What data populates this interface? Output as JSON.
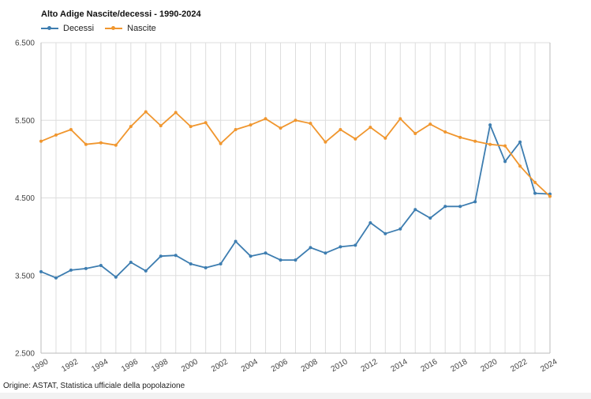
{
  "source": "Origine: ASTAT, Statistica ufficiale della popolazione",
  "colors": {
    "decessi": "#3d7db0",
    "nascite": "#f0962e",
    "grid": "#dddddd",
    "axis": "#bbbbbb"
  },
  "chart_data": {
    "type": "line",
    "title": "Alto Adige Nascite/decessi - 1990-2024",
    "xlabel": "",
    "ylabel": "",
    "x": [
      1990,
      1991,
      1992,
      1993,
      1994,
      1995,
      1996,
      1997,
      1998,
      1999,
      2000,
      2001,
      2002,
      2003,
      2004,
      2005,
      2006,
      2007,
      2008,
      2009,
      2010,
      2011,
      2012,
      2013,
      2014,
      2015,
      2016,
      2017,
      2018,
      2019,
      2020,
      2021,
      2022,
      2023,
      2024
    ],
    "xtick_labels": [
      "1990",
      "1992",
      "1994",
      "1996",
      "1998",
      "2000",
      "2002",
      "2004",
      "2006",
      "2008",
      "2010",
      "2012",
      "2014",
      "2016",
      "2018",
      "2020",
      "2022",
      "2024"
    ],
    "ylim": [
      2500,
      6500
    ],
    "ytick_labels": [
      "2.500",
      "3.500",
      "4.500",
      "5.500",
      "6.500"
    ],
    "yticks": [
      2500,
      3500,
      4500,
      5500,
      6500
    ],
    "grid": true,
    "legend_position": "top-left",
    "series": [
      {
        "name": "Decessi",
        "color": "#3d7db0",
        "values": [
          3550,
          3470,
          3570,
          3590,
          3630,
          3480,
          3670,
          3560,
          3750,
          3760,
          3650,
          3600,
          3650,
          3940,
          3750,
          3790,
          3700,
          3700,
          3860,
          3790,
          3870,
          3890,
          4180,
          4040,
          4100,
          4350,
          4240,
          4390,
          4390,
          4450,
          5440,
          4970,
          5220,
          4560,
          4550
        ]
      },
      {
        "name": "Nascite",
        "color": "#f0962e",
        "values": [
          5230,
          5310,
          5380,
          5190,
          5210,
          5180,
          5420,
          5610,
          5430,
          5600,
          5420,
          5470,
          5200,
          5380,
          5440,
          5520,
          5400,
          5500,
          5460,
          5220,
          5380,
          5260,
          5410,
          5270,
          5520,
          5330,
          5450,
          5350,
          5280,
          5230,
          5190,
          5170,
          4910,
          4700,
          4520
        ]
      }
    ]
  }
}
